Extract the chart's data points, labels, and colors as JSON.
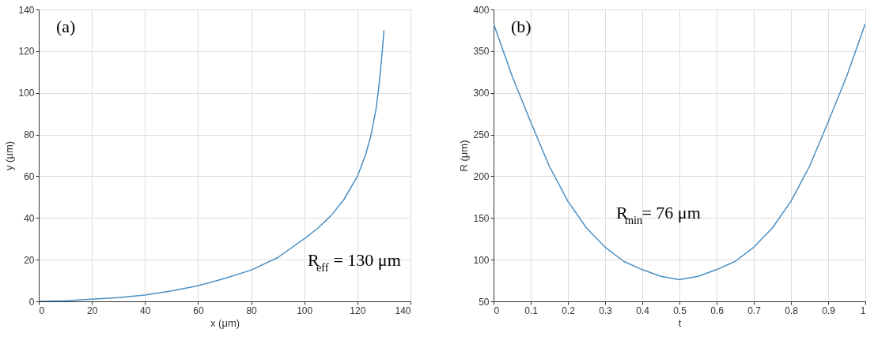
{
  "chart_data": [
    {
      "type": "line",
      "title": "(a)",
      "xlabel": "x (μm)",
      "ylabel": "y (μm)",
      "x": [
        0,
        10,
        20,
        30,
        40,
        50,
        60,
        70,
        80,
        90,
        100,
        105,
        110,
        115,
        120,
        123,
        125,
        127,
        128,
        129,
        129.5,
        130
      ],
      "series": [
        {
          "color": "#4a8fc4",
          "values": [
            0,
            0.3,
            1,
            1.8,
            3,
            5,
            7.5,
            11,
            15,
            21,
            30,
            35,
            41,
            49,
            60,
            70,
            79,
            92,
            102,
            115,
            122,
            130
          ]
        }
      ],
      "xlim": [
        0,
        140
      ],
      "ylim": [
        0,
        140
      ],
      "xticks": [
        0,
        20,
        40,
        60,
        80,
        100,
        120,
        140
      ],
      "yticks": [
        0,
        20,
        40,
        60,
        80,
        100,
        120,
        140
      ],
      "grid": true,
      "annotations": [
        "R$_{eff}$= 130 μm"
      ]
    },
    {
      "type": "line",
      "title": "(b)",
      "xlabel": "t",
      "ylabel": "R (μm)",
      "x": [
        0,
        0.05,
        0.1,
        0.15,
        0.2,
        0.25,
        0.3,
        0.35,
        0.4,
        0.45,
        0.5,
        0.55,
        0.6,
        0.65,
        0.7,
        0.75,
        0.8,
        0.85,
        0.9,
        0.95,
        1
      ],
      "series": [
        {
          "color": "#4a8fc4",
          "values": [
            383,
            320,
            265,
            212,
            170,
            138,
            115,
            98,
            88,
            80,
            76,
            80,
            88,
            98,
            115,
            138,
            170,
            212,
            265,
            320,
            383
          ]
        }
      ],
      "xlim": [
        0,
        1
      ],
      "ylim": [
        50,
        400
      ],
      "xticks": [
        0,
        0.1,
        0.2,
        0.3,
        0.4,
        0.5,
        0.6,
        0.7,
        0.8,
        0.9,
        1
      ],
      "yticks": [
        50,
        100,
        150,
        200,
        250,
        300,
        350,
        400
      ],
      "grid": true,
      "annotations": [
        "R$_{min}$= 76 μm"
      ]
    }
  ]
}
